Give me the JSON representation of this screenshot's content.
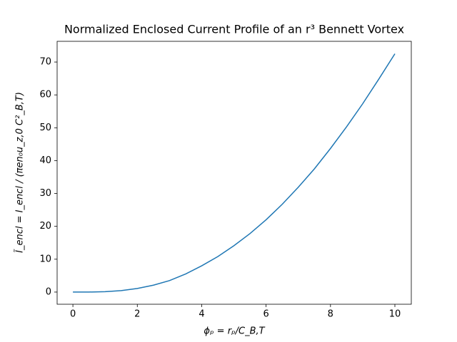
{
  "chart_data": {
    "type": "line",
    "title": "Normalized Enclosed Current Profile of an r³ Bennett Vortex",
    "x_label": "ϕₚ = rₚ/C_B,T",
    "y_label": "Ĩ_encl = I_encl / (πen₀u_z,0 C²_B,T)",
    "x": [
      0,
      0.5,
      1,
      1.5,
      2,
      2.5,
      3,
      3.5,
      4,
      4.5,
      5,
      5.5,
      6,
      6.5,
      7,
      7.5,
      8,
      8.5,
      9,
      9.5,
      10
    ],
    "series": [
      {
        "color": "#1f77b4",
        "values": [
          0,
          0.01,
          0.12,
          0.45,
          1.1,
          2.1,
          3.5,
          5.5,
          8,
          10.8,
          14.1,
          17.8,
          22.0,
          26.7,
          31.9,
          37.5,
          43.7,
          50.3,
          57.3,
          64.8,
          72.5
        ]
      }
    ],
    "xlim": [
      -0.49,
      10.51
    ],
    "xticks": [
      0,
      2,
      4,
      6,
      8,
      10
    ],
    "ylim": [
      -3.7,
      76.3
    ],
    "yticks": [
      0,
      10,
      20,
      30,
      40,
      50,
      60,
      70
    ],
    "grid": false
  }
}
